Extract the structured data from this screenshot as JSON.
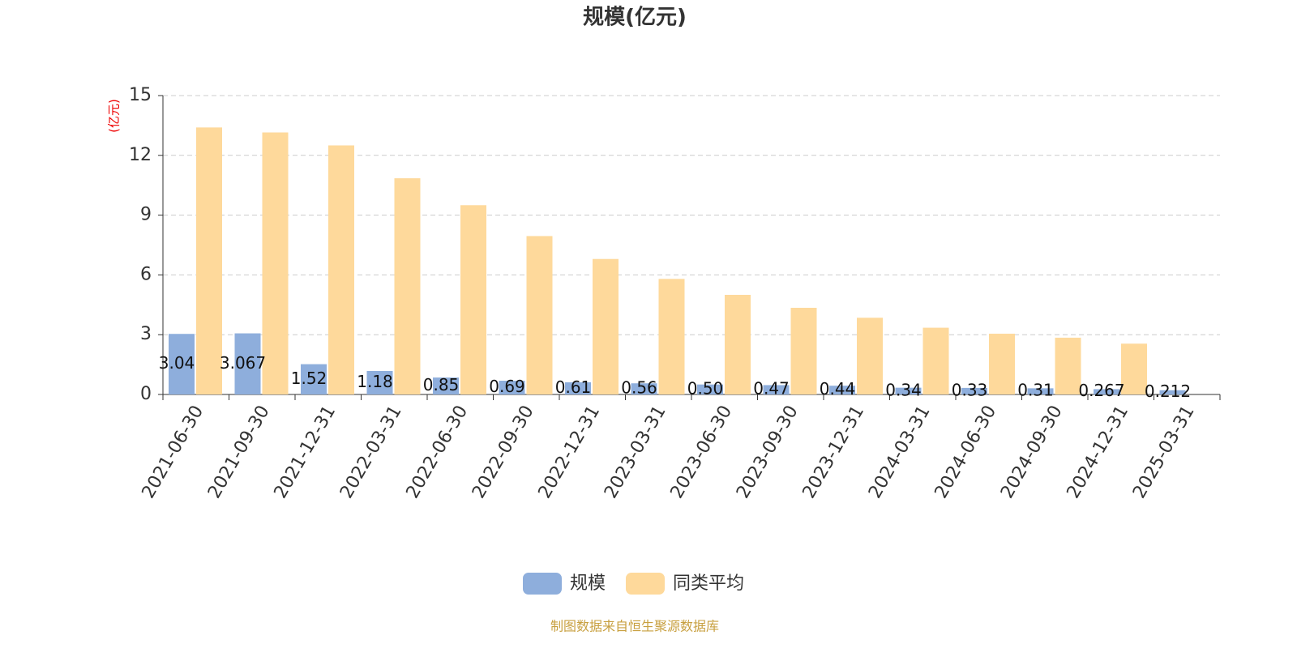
{
  "chart_data": {
    "type": "bar",
    "title": "规模(亿元)",
    "y_axis_label": "(亿元)",
    "categories": [
      "2021-06-30",
      "2021-09-30",
      "2021-12-31",
      "2022-03-31",
      "2022-06-30",
      "2022-09-30",
      "2022-12-31",
      "2023-03-31",
      "2023-06-30",
      "2023-09-30",
      "2023-12-31",
      "2024-03-31",
      "2024-06-30",
      "2024-09-30",
      "2024-12-31",
      "2025-03-31"
    ],
    "series": [
      {
        "name": "规模",
        "color": "#8eaedc",
        "values": [
          3.04,
          3.067,
          1.52,
          1.18,
          0.85,
          0.69,
          0.61,
          0.56,
          0.5,
          0.47,
          0.44,
          0.34,
          0.33,
          0.31,
          0.267,
          0.212
        ],
        "value_labels": [
          "3.04",
          "3.067",
          "1.52",
          "1.18",
          "0.85",
          "0.69",
          "0.61",
          "0.56",
          "0.50",
          "0.47",
          "0.44",
          "0.34",
          "0.33",
          "0.31",
          "0.267",
          "0.212"
        ]
      },
      {
        "name": "同类平均",
        "color": "#fed99b",
        "values": [
          13.4,
          13.15,
          12.5,
          10.85,
          9.5,
          7.95,
          6.8,
          5.8,
          5.0,
          4.35,
          3.85,
          3.35,
          3.05,
          2.85,
          2.55,
          null
        ]
      }
    ],
    "ylim": [
      0,
      15
    ],
    "yticks": [
      0,
      3,
      6,
      9,
      12,
      15
    ],
    "grid": true,
    "source": "制图数据来自恒生聚源数据库"
  }
}
